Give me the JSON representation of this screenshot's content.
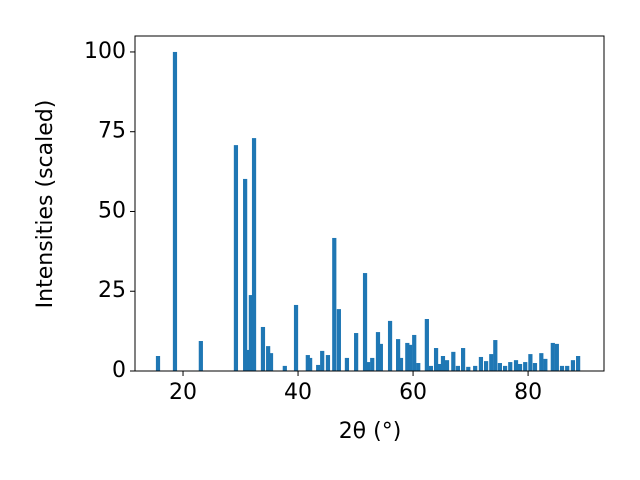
{
  "chart_data": {
    "type": "bar",
    "x_label": "2θ (°)",
    "y_label": "Intensities (scaled)",
    "x": [
      15.65,
      18.6,
      23.1,
      29.2,
      30.8,
      31.3,
      31.8,
      32.35,
      33.9,
      34.8,
      35.3,
      37.7,
      39.65,
      41.7,
      42.1,
      43.5,
      44.2,
      45.2,
      46.3,
      47.1,
      48.5,
      50.1,
      51.65,
      52.2,
      52.9,
      53.9,
      54.4,
      56.0,
      57.4,
      57.9,
      59.0,
      59.5,
      60.2,
      60.9,
      62.4,
      63.1,
      64.0,
      64.7,
      65.2,
      65.9,
      67.0,
      67.8,
      68.7,
      69.6,
      70.8,
      71.8,
      72.7,
      73.6,
      74.3,
      75.1,
      76.0,
      76.9,
      77.9,
      78.6,
      79.5,
      80.4,
      81.2,
      82.3,
      83.0,
      84.3,
      85.0,
      85.9,
      86.8,
      87.8,
      88.7
    ],
    "values": [
      4.7,
      100,
      9.4,
      70.8,
      60.2,
      6.6,
      23.8,
      73.0,
      13.8,
      7.8,
      5.6,
      1.6,
      20.7,
      5.0,
      4.1,
      1.9,
      6.3,
      5.0,
      41.7,
      19.4,
      4.1,
      11.9,
      30.7,
      2.8,
      4.1,
      12.2,
      8.5,
      15.7,
      10.0,
      4.1,
      8.8,
      8.2,
      11.3,
      2.5,
      16.3,
      1.6,
      7.2,
      2.2,
      4.7,
      3.4,
      6.0,
      1.6,
      7.2,
      1.3,
      1.6,
      4.4,
      3.1,
      5.3,
      9.7,
      2.5,
      1.6,
      2.8,
      3.4,
      2.2,
      2.8,
      5.3,
      2.5,
      5.6,
      3.8,
      8.8,
      8.5,
      1.6,
      1.6,
      3.4,
      4.7
    ],
    "color": "#1f77b4",
    "xlim": [
      11.65,
      93.2
    ],
    "ylim": [
      0,
      105
    ],
    "xticks": [
      20,
      40,
      60,
      80
    ],
    "yticks": [
      0,
      25,
      50,
      75,
      100
    ]
  }
}
